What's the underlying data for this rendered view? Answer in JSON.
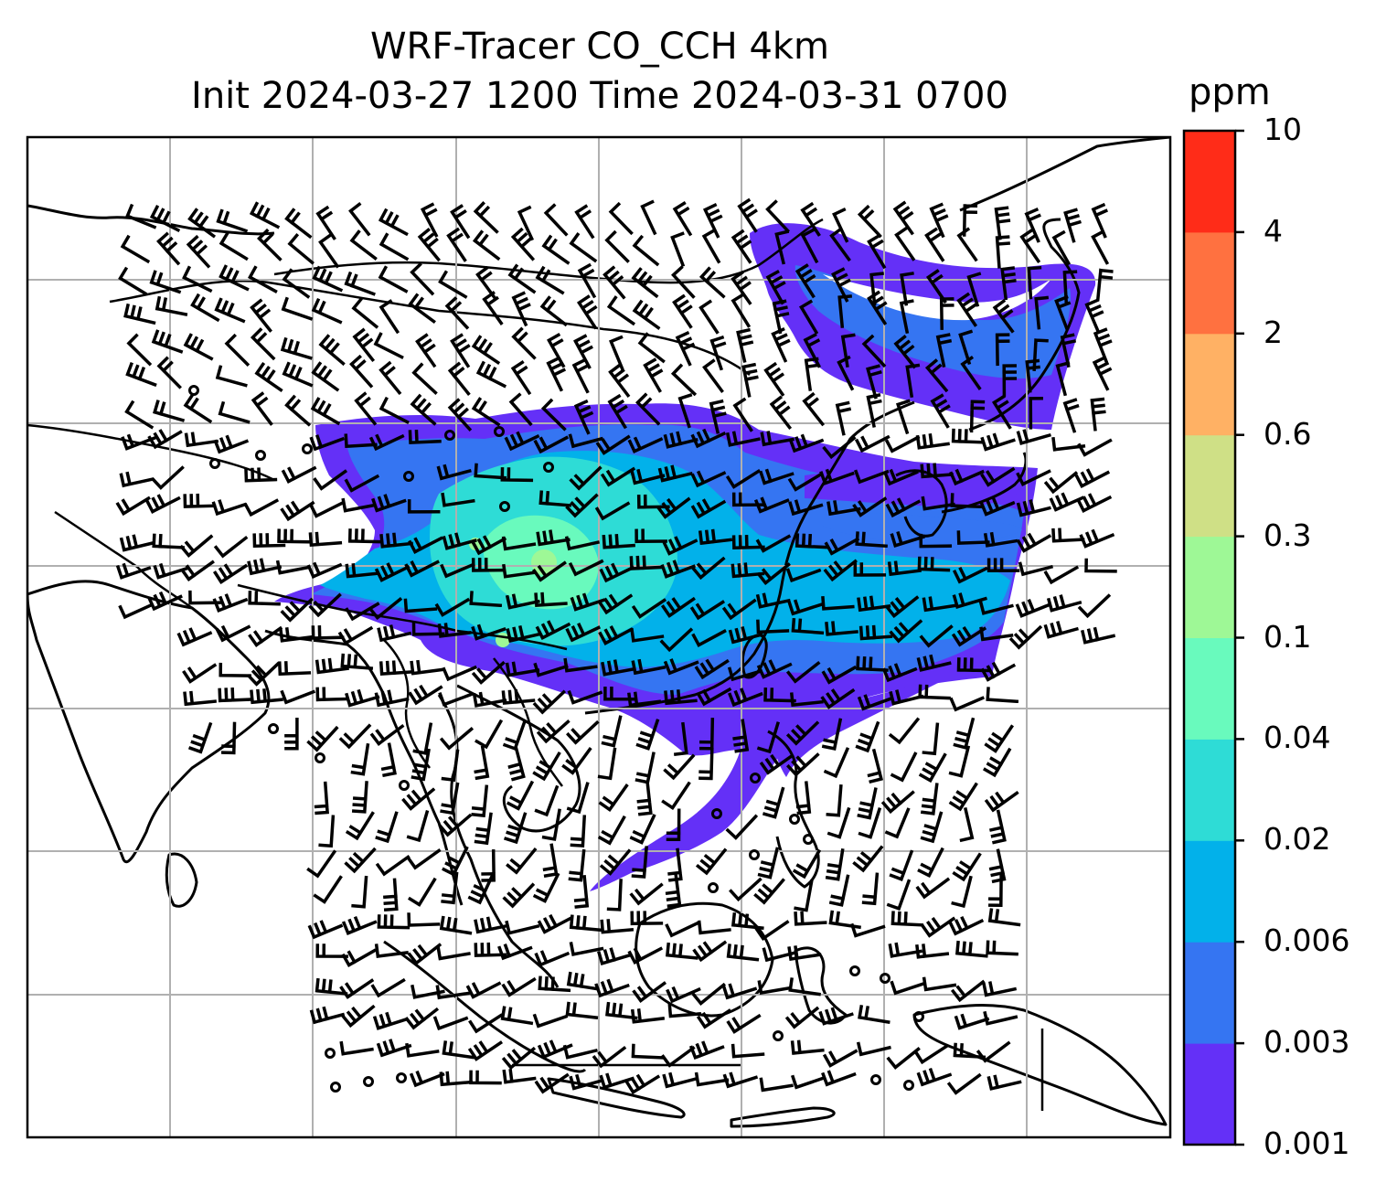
{
  "title": {
    "line1": "WRF-Tracer CO_CCH 4km",
    "line2": "Init 2024-03-27 1200 Time 2024-03-31 0700"
  },
  "colorbar": {
    "unit": "ppm",
    "levels": [
      "0.001",
      "0.003",
      "0.006",
      "0.02",
      "0.04",
      "0.1",
      "0.3",
      "0.6",
      "2",
      "4",
      "10"
    ],
    "colors": [
      "#6430f7",
      "#3575f2",
      "#02b1ea",
      "#2edcd6",
      "#69fabd",
      "#9ef896",
      "#cfe086",
      "#ffb164",
      "#ff7140",
      "#ff2c18"
    ]
  },
  "map": {
    "gridlines": true,
    "features": [
      "coastlines",
      "country-borders",
      "wind-barbs",
      "calm-wind-circles",
      "tracer-concentration-fill"
    ]
  }
}
